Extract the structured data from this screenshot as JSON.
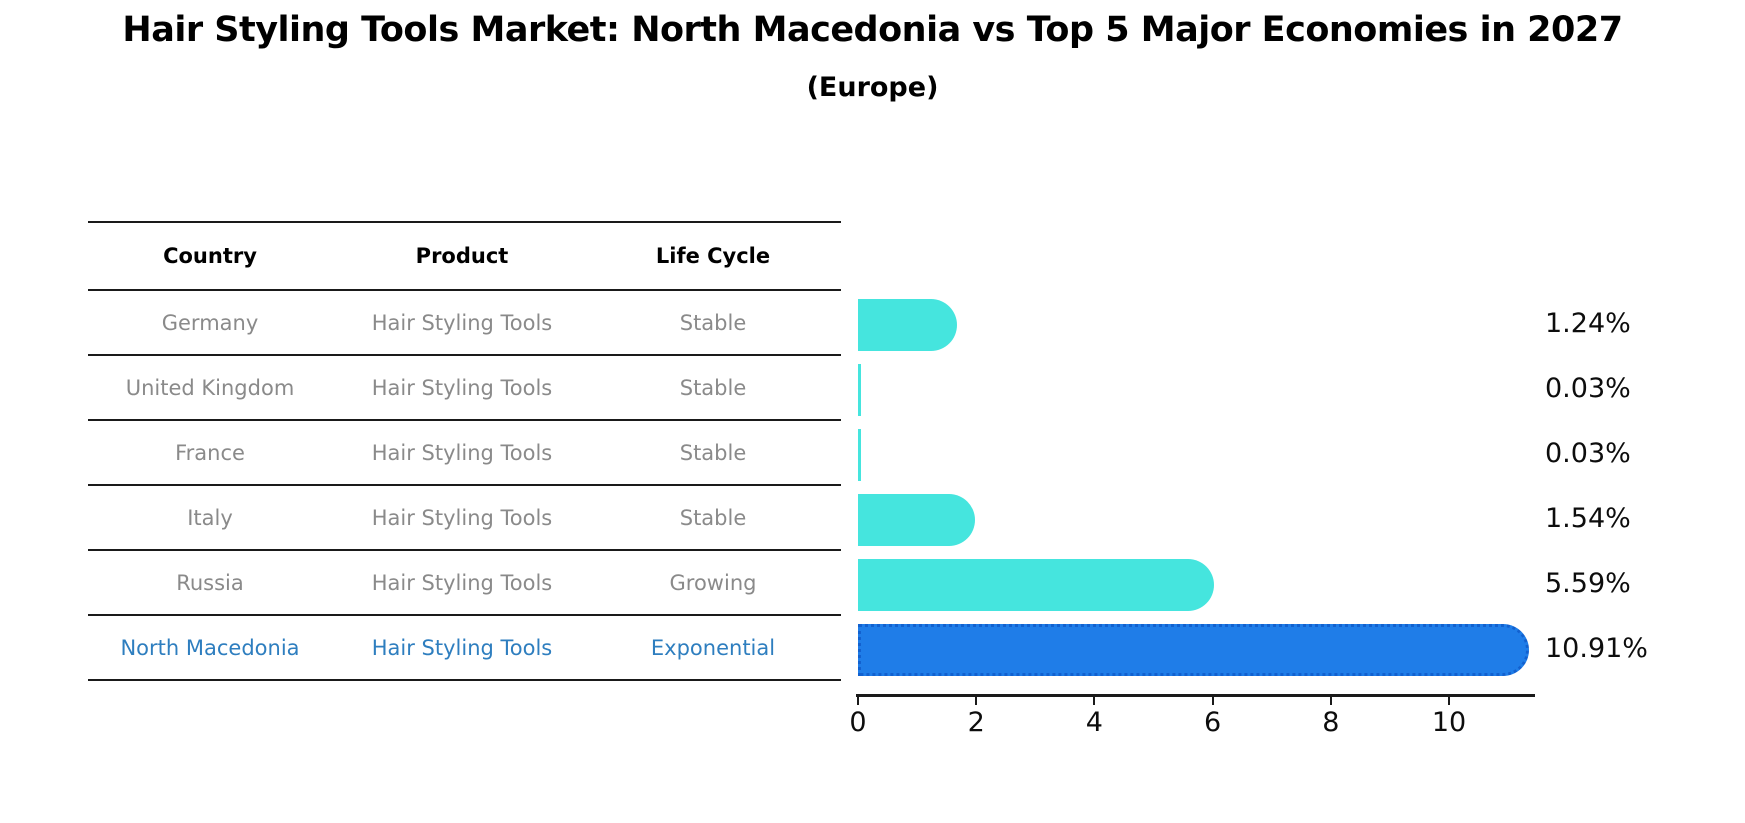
{
  "title": "Hair Styling Tools Market: North Macedonia vs Top 5 Major Economies in 2027",
  "subtitle": "(Europe)",
  "table": {
    "headers": [
      "Country",
      "Product",
      "Life Cycle"
    ],
    "rows": [
      {
        "country": "Germany",
        "product": "Hair Styling Tools",
        "life_cycle": "Stable",
        "highlight": false
      },
      {
        "country": "United Kingdom",
        "product": "Hair Styling Tools",
        "life_cycle": "Stable",
        "highlight": false
      },
      {
        "country": "France",
        "product": "Hair Styling Tools",
        "life_cycle": "Stable",
        "highlight": false
      },
      {
        "country": "Italy",
        "product": "Hair Styling Tools",
        "life_cycle": "Stable",
        "highlight": false
      },
      {
        "country": "Russia",
        "product": "Hair Styling Tools",
        "life_cycle": "Growing",
        "highlight": false
      },
      {
        "country": "North Macedonia",
        "product": "Hair Styling Tools",
        "life_cycle": "Exponential",
        "highlight": true
      }
    ]
  },
  "chart_data": {
    "type": "bar",
    "orientation": "horizontal",
    "categories": [
      "Germany",
      "United Kingdom",
      "France",
      "Italy",
      "Russia",
      "North Macedonia"
    ],
    "values": [
      1.24,
      0.03,
      0.03,
      1.54,
      5.59,
      10.91
    ],
    "value_labels": [
      "1.24%",
      "0.03%",
      "0.03%",
      "1.54%",
      "5.59%",
      "10.91%"
    ],
    "x_ticks": [
      "0",
      "2",
      "4",
      "6",
      "8",
      "10"
    ],
    "xlim": [
      0,
      11.45
    ],
    "grid": "off",
    "legend": "none",
    "bar_color": "#45e5de",
    "highlight_bar_color": "#1f7de8",
    "highlight_bar_edge_color": "#1261cf",
    "highlight_text_color": "#2e7ebf",
    "body_text_color": "#8a8a8a",
    "highlight_index": 5
  }
}
